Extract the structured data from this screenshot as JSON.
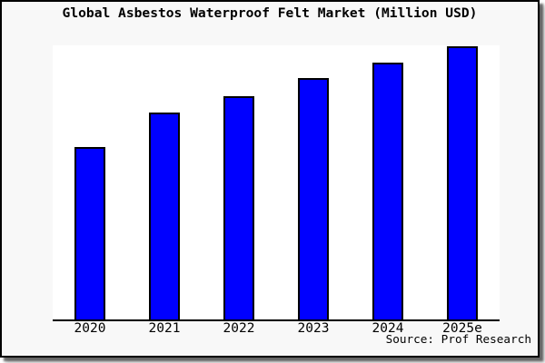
{
  "frame": {
    "background": "#f8f8f8",
    "border_color": "#000000"
  },
  "chart_data": {
    "type": "bar",
    "title": "Global Asbestos Waterproof Felt Market (Million USD)",
    "categories": [
      "2020",
      "2021",
      "2022",
      "2023",
      "2024",
      "2025e"
    ],
    "values_relative": [
      63.1,
      75.6,
      81.7,
      88.4,
      94.0,
      100
    ],
    "value_scale_note": "y-axis is unlabeled; values are bar heights as percent of the tallest bar (2025e = 100)",
    "xlabel": "",
    "ylabel": "",
    "grid": false,
    "legend": false,
    "bar_color": "#0000ff",
    "bar_border_color": "#000000",
    "plot_background": "#ffffff",
    "source_note": "Source: Prof Research"
  }
}
